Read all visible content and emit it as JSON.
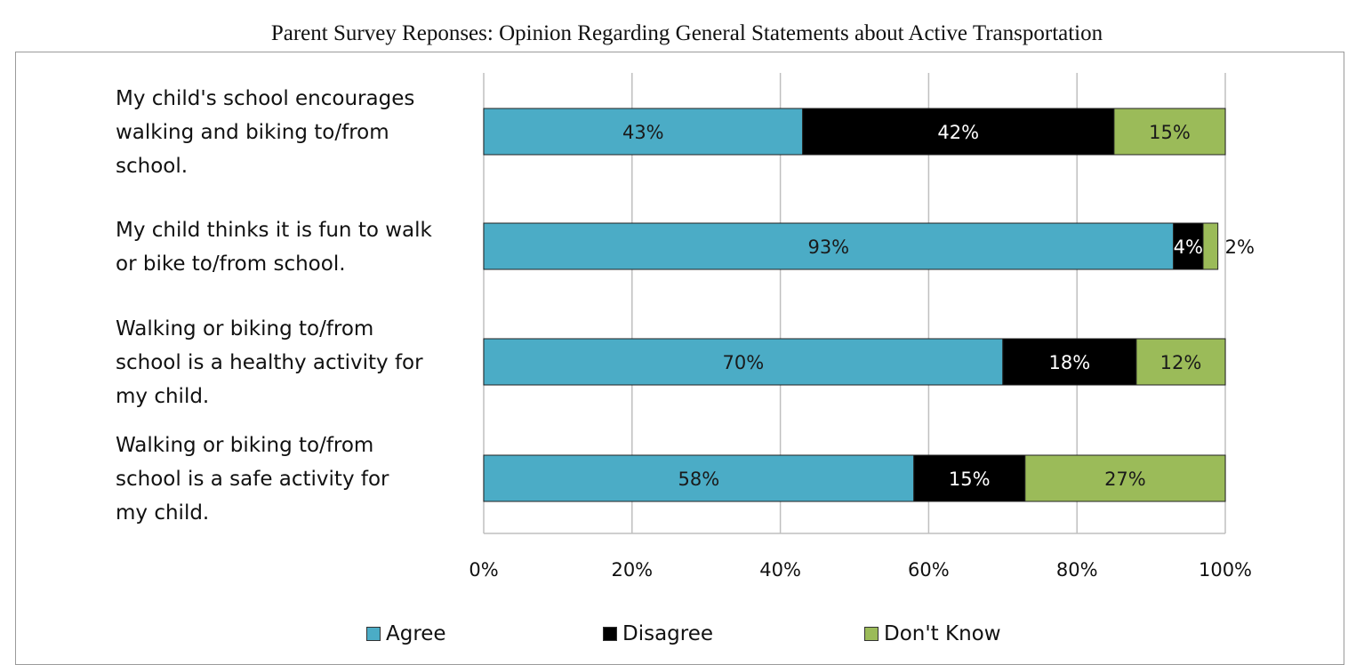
{
  "chart_data": {
    "type": "bar",
    "orientation": "horizontal",
    "stacked": true,
    "title": "Parent Survey Reponses: Opinion Regarding General Statements about Active Transportation",
    "categories": [
      [
        "My child's school encourages",
        "walking and biking to/from",
        "school."
      ],
      [
        "My child thinks it is fun to walk",
        "or bike to/from school."
      ],
      [
        "Walking or biking to/from",
        "school is a healthy activity for",
        "my child."
      ],
      [
        "Walking or biking to/from",
        "school is a safe activity for",
        "my child."
      ]
    ],
    "series": [
      {
        "name": "Agree",
        "color": "#4bacc6",
        "label_color": "#1a1a1a",
        "values": [
          43,
          93,
          70,
          58
        ],
        "labels": [
          "43%",
          "93%",
          "70%",
          "58%"
        ]
      },
      {
        "name": "Disagree",
        "color": "#000000",
        "label_color": "#ffffff",
        "values": [
          42,
          4,
          18,
          15
        ],
        "labels": [
          "42%",
          "4%",
          "18%",
          "15%"
        ]
      },
      {
        "name": "Don't Know",
        "color": "#9bbb59",
        "label_color": "#1a1a1a",
        "values": [
          15,
          2,
          12,
          27
        ],
        "labels": [
          "15%",
          "2%",
          "12%",
          "27%"
        ]
      }
    ],
    "x_ticks": [
      "0%",
      "20%",
      "40%",
      "60%",
      "80%",
      "100%"
    ],
    "xlim": [
      0,
      100
    ],
    "grid": true,
    "legend_position": "bottom"
  }
}
